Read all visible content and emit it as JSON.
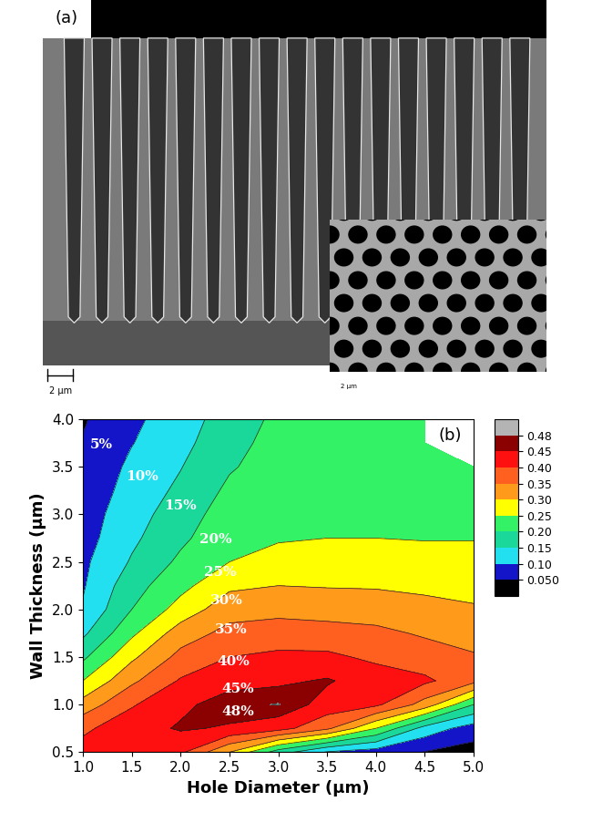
{
  "panel_a": {
    "label": "(a)",
    "scale_bar": "2 μm",
    "inset_scale_bar": "2 μm"
  },
  "chart_data": {
    "type": "contour",
    "panel_label": "(b)",
    "x_label": "Hole Diameter (μm)",
    "y_label": "Wall Thickness (μm)",
    "x": [
      1.0,
      1.5,
      2.0,
      2.5,
      3.0,
      3.5,
      4.0,
      4.5,
      5.0
    ],
    "y": [
      0.5,
      0.75,
      1.0,
      1.25,
      1.5,
      1.75,
      2.0,
      2.25,
      2.5,
      2.75,
      3.0,
      3.25,
      3.5,
      3.75,
      4.0
    ],
    "values": [
      [
        0.42,
        0.43,
        0.41,
        0.3,
        0.175,
        0.095,
        0.075,
        0.048,
        0.03
      ],
      [
        0.39,
        0.43,
        0.455,
        0.445,
        0.42,
        0.36,
        0.25,
        0.13,
        0.075
      ],
      [
        0.32,
        0.395,
        0.44,
        0.47,
        0.482,
        0.43,
        0.41,
        0.33,
        0.2
      ],
      [
        0.25,
        0.34,
        0.405,
        0.435,
        0.44,
        0.455,
        0.425,
        0.41,
        0.365
      ],
      [
        0.19,
        0.29,
        0.365,
        0.4,
        0.41,
        0.41,
        0.39,
        0.37,
        0.355
      ],
      [
        0.14,
        0.24,
        0.325,
        0.365,
        0.375,
        0.37,
        0.36,
        0.345,
        0.33
      ],
      [
        0.105,
        0.2,
        0.27,
        0.33,
        0.335,
        0.33,
        0.33,
        0.315,
        0.305
      ],
      [
        0.095,
        0.18,
        0.235,
        0.29,
        0.3,
        0.297,
        0.295,
        0.29,
        0.285
      ],
      [
        0.09,
        0.155,
        0.21,
        0.25,
        0.27,
        0.27,
        0.27,
        0.265,
        0.265
      ],
      [
        0.08,
        0.14,
        0.19,
        0.235,
        0.245,
        0.25,
        0.25,
        0.248,
        0.248
      ],
      [
        0.075,
        0.13,
        0.175,
        0.225,
        0.235,
        0.24,
        0.24,
        0.238,
        0.238
      ],
      [
        0.065,
        0.12,
        0.16,
        0.21,
        0.228,
        0.233,
        0.233,
        0.23,
        0.23
      ],
      [
        0.06,
        0.11,
        0.148,
        0.195,
        0.222,
        0.227,
        0.226,
        0.223,
        0.222
      ],
      [
        0.053,
        0.098,
        0.135,
        0.185,
        0.216,
        0.222,
        0.22,
        0.218,
        null
      ],
      [
        0.045,
        0.09,
        0.125,
        0.175,
        0.21,
        0.217,
        0.215,
        0.213,
        null
      ]
    ],
    "xlim": [
      1.0,
      5.0
    ],
    "xticks": [
      1.0,
      1.5,
      2.0,
      2.5,
      3.0,
      3.5,
      4.0,
      4.5,
      5.0
    ],
    "ylim": [
      0.5,
      4.0
    ],
    "yticks": [
      0.5,
      1.0,
      1.5,
      2.0,
      2.5,
      3.0,
      3.5,
      4.0
    ],
    "colorbar": {
      "range": [
        0,
        0.5
      ],
      "ticks": [
        {
          "value": 0.05,
          "label": "0.050"
        },
        {
          "value": 0.1,
          "label": "0.10"
        },
        0.15,
        {
          "value": 0.2,
          "label": "0.20"
        },
        0.25,
        {
          "value": 0.3,
          "label": "0.30"
        },
        0.35,
        {
          "value": 0.4,
          "label": "0.40"
        },
        0.45,
        0.48
      ],
      "colors": [
        "#000000",
        "#1414c8",
        "#22e0f0",
        "#1ad79a",
        "#33f266",
        "#ffff00",
        "#ff9a1a",
        "#ff6020",
        "#ff1010",
        "#8b0000",
        "#b4b4b4"
      ]
    },
    "contour_labels": {
      "values": [
        5,
        10,
        15,
        20,
        25,
        30,
        35,
        40,
        45,
        48
      ],
      "value_labels": [
        "5%",
        "10%",
        "15%",
        "20%",
        "25%",
        "30%",
        "35%",
        "40%",
        "45%",
        "48%"
      ]
    }
  }
}
